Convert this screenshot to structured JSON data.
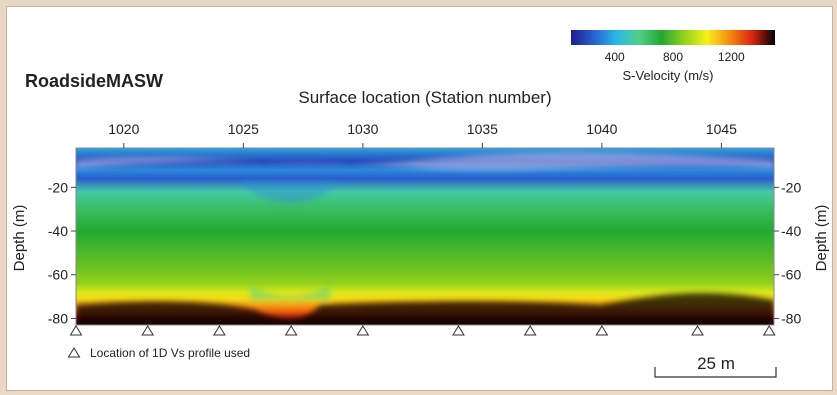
{
  "brand": {
    "text": "RoadsideMASW",
    "color": "#2b4fa8"
  },
  "chart_data": {
    "type": "heatmap",
    "title": "Surface location (Station number)",
    "xlabel": "Surface location (Station number)",
    "ylabel_left": "Depth (m)",
    "ylabel_right": "Depth (m)",
    "x_ticks": [
      1020,
      1025,
      1030,
      1035,
      1040,
      1045
    ],
    "x_range": [
      1018,
      1047.2
    ],
    "y_ticks": [
      -20,
      -40,
      -60,
      -80
    ],
    "y_range": [
      -2,
      -83
    ],
    "colorbar": {
      "label": "S-Velocity (m/s)",
      "ticks": [
        400,
        800,
        1200
      ],
      "range": [
        100,
        1500
      ],
      "colors": [
        "#1e1f8f",
        "#2a5fd0",
        "#2bb7e8",
        "#4fd08a",
        "#23a830",
        "#93d21c",
        "#f6f11a",
        "#f58a12",
        "#d8240f",
        "#000000"
      ]
    },
    "depth_profile": {
      "depth_m": [
        -2,
        -8,
        -12,
        -16,
        -22,
        -30,
        -40,
        -50,
        -58,
        -64,
        -68,
        -71,
        -74,
        -77,
        -80,
        -83
      ],
      "velocity_mps": [
        380,
        200,
        330,
        250,
        520,
        640,
        720,
        780,
        830,
        880,
        990,
        1070,
        1160,
        1260,
        1400,
        1480
      ]
    },
    "profile_locations_stations": [
      1018,
      1021,
      1024,
      1027,
      1030,
      1034,
      1037,
      1040,
      1044,
      1047
    ],
    "legend": {
      "marker_label": "Location of 1D Vs profile used"
    },
    "scale_bar": {
      "label": "25 m"
    }
  }
}
